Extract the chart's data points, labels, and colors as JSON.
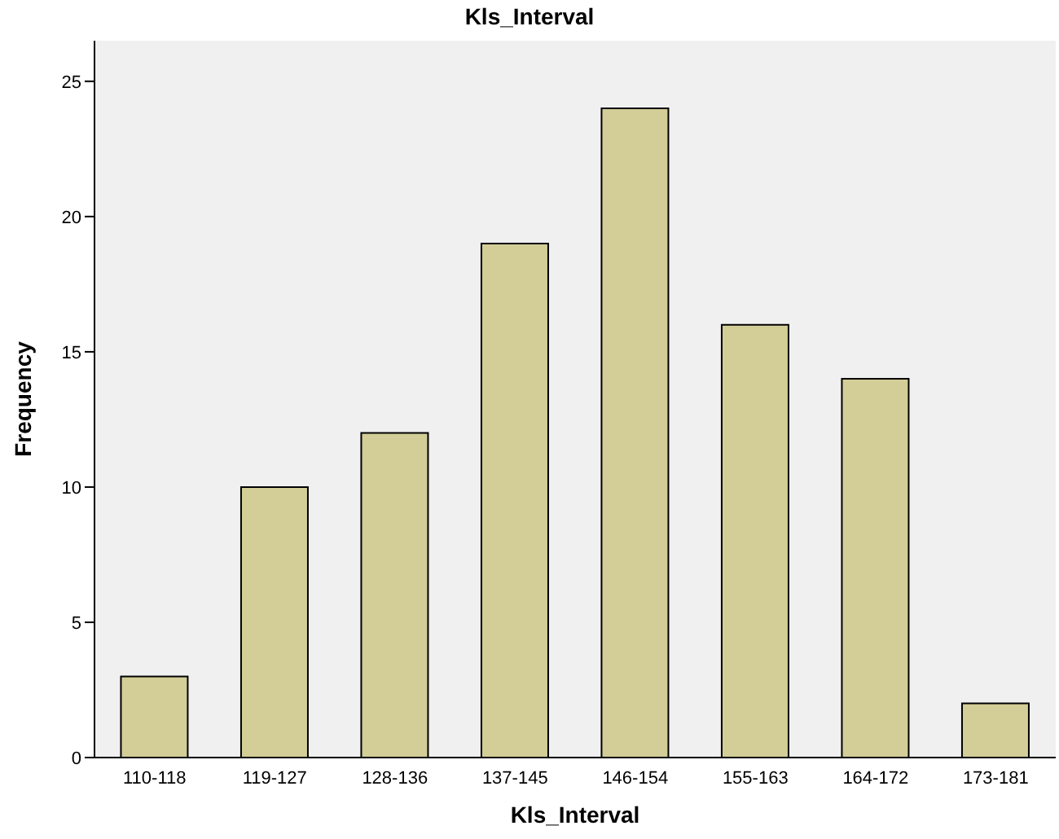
{
  "chart_data": {
    "type": "bar",
    "title": "Kls_Interval",
    "xlabel": "Kls_Interval",
    "ylabel": "Frequency",
    "categories": [
      "110-118",
      "119-127",
      "128-136",
      "137-145",
      "146-154",
      "155-163",
      "164-172",
      "173-181"
    ],
    "values": [
      3,
      10,
      12,
      19,
      24,
      16,
      14,
      2
    ],
    "color": "#d3ce97",
    "ylim": [
      0,
      26.5
    ],
    "yticks": [
      0,
      5,
      10,
      15,
      20,
      25
    ],
    "grid": false
  }
}
